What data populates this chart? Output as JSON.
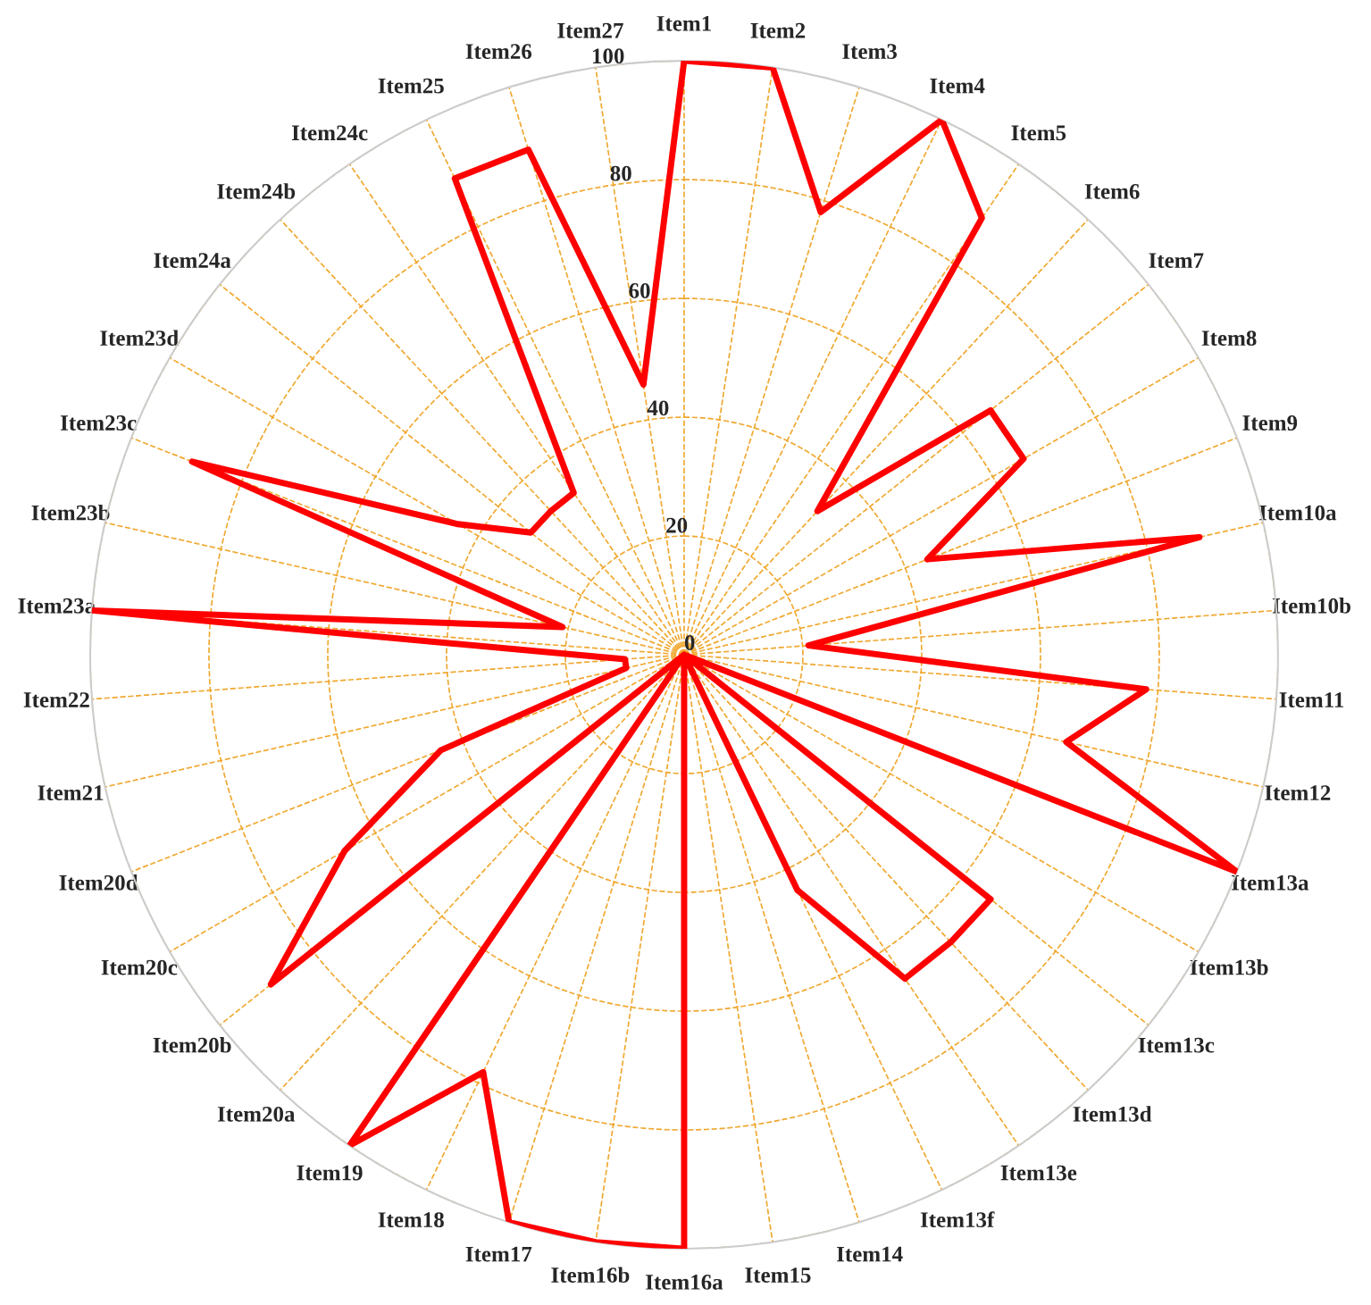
{
  "chart_data": {
    "type": "radar",
    "categories": [
      "Item1",
      "Item2",
      "Item3",
      "Item4",
      "Item5",
      "Item6",
      "Item7",
      "Item8",
      "Item9",
      "Item10a",
      "Item10b",
      "Item11",
      "Item12",
      "Item13a",
      "Item13b",
      "Item13c",
      "Item13d",
      "Item13e",
      "Item13f",
      "Item14",
      "Item15",
      "Item16a",
      "Item16b",
      "Item17",
      "Item18",
      "Item19",
      "Item20a",
      "Item20b",
      "Item20c",
      "Item20d",
      "Item21",
      "Item22",
      "Item23a",
      "Item23b",
      "Item23c",
      "Item23d",
      "Item24a",
      "Item24b",
      "Item24c",
      "Item25",
      "Item26",
      "Item27"
    ],
    "series": [
      {
        "color": "#ff0000",
        "values": [
          100,
          100,
          78,
          100,
          89,
          33,
          66,
          66,
          44,
          89,
          21,
          78,
          66,
          100,
          0,
          66,
          66,
          66,
          44,
          0,
          0,
          100,
          100,
          100,
          78,
          100,
          0,
          89,
          66,
          44,
          10,
          10,
          100,
          21,
          89,
          44,
          33,
          33,
          33,
          89,
          89,
          46
        ]
      }
    ],
    "ylim": [
      0,
      100
    ],
    "yticks": [
      0,
      20,
      40,
      60,
      80,
      100
    ],
    "grid": true
  }
}
